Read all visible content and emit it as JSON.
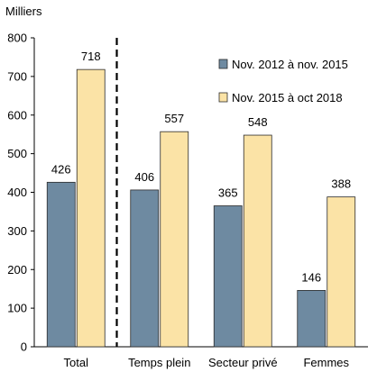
{
  "chart_data": {
    "type": "bar",
    "unit_label": "Milliers",
    "categories": [
      "Total",
      "Temps plein",
      "Secteur privé",
      "Femmes"
    ],
    "series": [
      {
        "name": "Nov. 2012 à nov. 2015",
        "color": "#6e8aa1",
        "values": [
          426,
          406,
          365,
          146
        ]
      },
      {
        "name": "Nov. 2015 à oct 2018",
        "color": "#fbe3a6",
        "values": [
          718,
          557,
          548,
          388
        ]
      }
    ],
    "ylim": [
      0,
      800
    ],
    "yticks": [
      0,
      100,
      200,
      300,
      400,
      500,
      600,
      700,
      800
    ],
    "grid": false,
    "legend_position": "top-right",
    "separator_after_category": "Total",
    "bar_stroke_color": "#2b2b2b"
  }
}
